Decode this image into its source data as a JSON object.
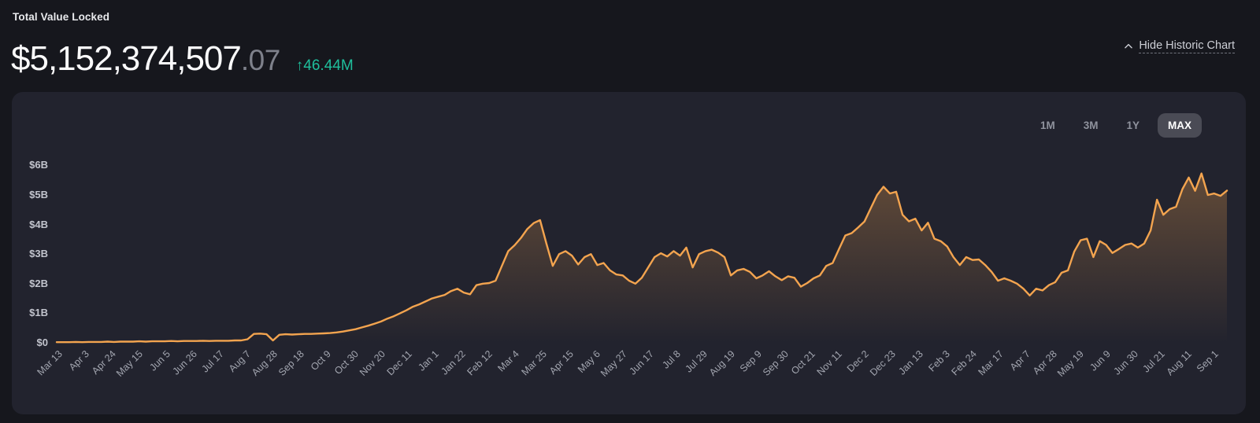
{
  "header": {
    "title": "Total Value Locked",
    "value_main": "$5,152,374,507",
    "value_decimal": ".07",
    "change_arrow": "↑",
    "change_text": "46.44M",
    "toggle_chart_label": "Hide Historic Chart",
    "positive_color": "#1fbf9c"
  },
  "chart_controls": {
    "ranges": [
      "1M",
      "3M",
      "1Y",
      "MAX"
    ],
    "active": "MAX"
  },
  "chart_data": {
    "type": "area",
    "title": "Total Value Locked — historic chart",
    "unit": "USD billions",
    "ylim": [
      0,
      6.4
    ],
    "grid": false,
    "legend": "none",
    "y_tick_labels": [
      "$0",
      "$1B",
      "$2B",
      "$3B",
      "$4B",
      "$5B",
      "$6B"
    ],
    "x_tick_labels": [
      "Mar 13",
      "Apr 3",
      "Apr 24",
      "May 15",
      "Jun 5",
      "Jun 26",
      "Jul 17",
      "Aug 7",
      "Aug 28",
      "Sep 18",
      "Oct 9",
      "Oct 30",
      "Nov 20",
      "Dec 11",
      "Jan 1",
      "Jan 22",
      "Feb 12",
      "Mar 4",
      "Mar 25",
      "Apr 15",
      "May 6",
      "May 27",
      "Jun 17",
      "Jul 8",
      "Jul 29",
      "Aug 19",
      "Sep 9",
      "Sep 30",
      "Oct 21",
      "Nov 11",
      "Dec 2",
      "Dec 23",
      "Jan 13",
      "Feb 3",
      "Feb 24",
      "Mar 17",
      "Apr 7",
      "Apr 28",
      "May 19",
      "Jun 9",
      "Jun 30",
      "Jul 21",
      "Aug 11",
      "Sep 1"
    ],
    "x_tick_interval_days": 21,
    "days_per_point": 5,
    "values_billions": [
      0.02,
      0.02,
      0.02,
      0.03,
      0.02,
      0.03,
      0.03,
      0.03,
      0.04,
      0.03,
      0.04,
      0.04,
      0.04,
      0.05,
      0.04,
      0.05,
      0.05,
      0.05,
      0.06,
      0.05,
      0.06,
      0.06,
      0.06,
      0.07,
      0.06,
      0.07,
      0.07,
      0.07,
      0.08,
      0.08,
      0.12,
      0.3,
      0.31,
      0.29,
      0.08,
      0.27,
      0.29,
      0.28,
      0.29,
      0.3,
      0.3,
      0.31,
      0.32,
      0.33,
      0.35,
      0.38,
      0.42,
      0.46,
      0.52,
      0.58,
      0.65,
      0.72,
      0.82,
      0.9,
      1.0,
      1.1,
      1.22,
      1.3,
      1.4,
      1.5,
      1.56,
      1.62,
      1.75,
      1.83,
      1.7,
      1.64,
      1.95,
      2.0,
      2.02,
      2.1,
      2.6,
      3.1,
      3.3,
      3.55,
      3.85,
      4.05,
      4.15,
      3.35,
      2.6,
      3.0,
      3.1,
      2.95,
      2.65,
      2.9,
      3.0,
      2.63,
      2.7,
      2.45,
      2.31,
      2.28,
      2.1,
      2.0,
      2.2,
      2.55,
      2.9,
      3.03,
      2.92,
      3.1,
      2.95,
      3.22,
      2.55,
      3.0,
      3.1,
      3.15,
      3.05,
      2.9,
      2.28,
      2.45,
      2.5,
      2.4,
      2.18,
      2.28,
      2.42,
      2.25,
      2.12,
      2.25,
      2.2,
      1.9,
      2.02,
      2.18,
      2.28,
      2.6,
      2.7,
      3.17,
      3.63,
      3.71,
      3.9,
      4.1,
      4.55,
      5.0,
      5.28,
      5.05,
      5.11,
      4.33,
      4.11,
      4.2,
      3.8,
      4.06,
      3.52,
      3.44,
      3.26,
      2.9,
      2.63,
      2.9,
      2.8,
      2.82,
      2.63,
      2.4,
      2.1,
      2.18,
      2.1,
      2.0,
      1.83,
      1.6,
      1.83,
      1.77,
      1.95,
      2.05,
      2.37,
      2.45,
      3.09,
      3.47,
      3.52,
      2.9,
      3.44,
      3.31,
      3.04,
      3.17,
      3.31,
      3.36,
      3.22,
      3.36,
      3.8,
      4.84,
      4.33,
      4.52,
      4.6,
      5.2,
      5.59,
      5.14,
      5.73,
      5.0,
      5.05,
      4.97,
      5.15
    ],
    "line_color": "#f3a44f",
    "area_fill_color": "#f3a44f"
  }
}
